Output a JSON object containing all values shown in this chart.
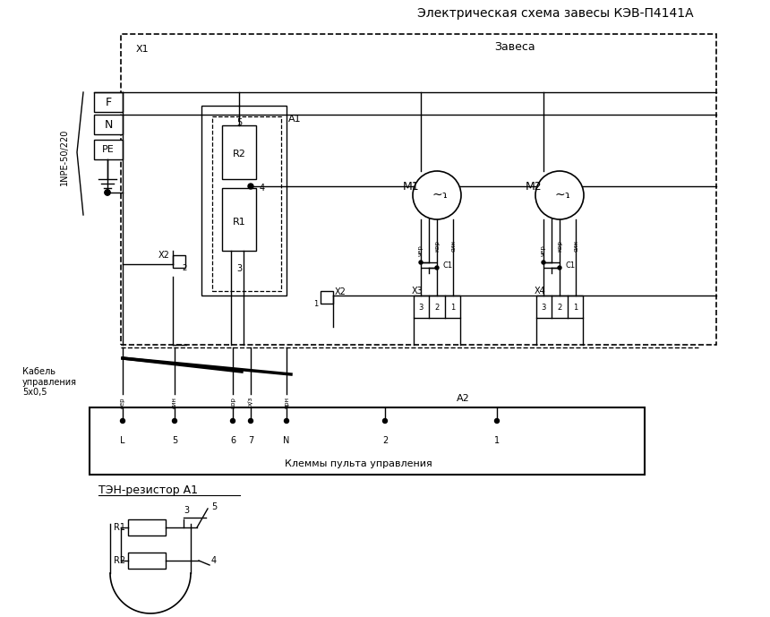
{
  "title": "Электрическая схема завесы КЭВ-П4141А",
  "zavesa_label": "Завеса",
  "cable_label": "Кабель\nуправления\n5х0,5",
  "clemmy_label": "Клеммы пульта управления",
  "ten_label": "ТЭН-резистор А1",
  "background": "#ffffff",
  "line_color": "#000000"
}
